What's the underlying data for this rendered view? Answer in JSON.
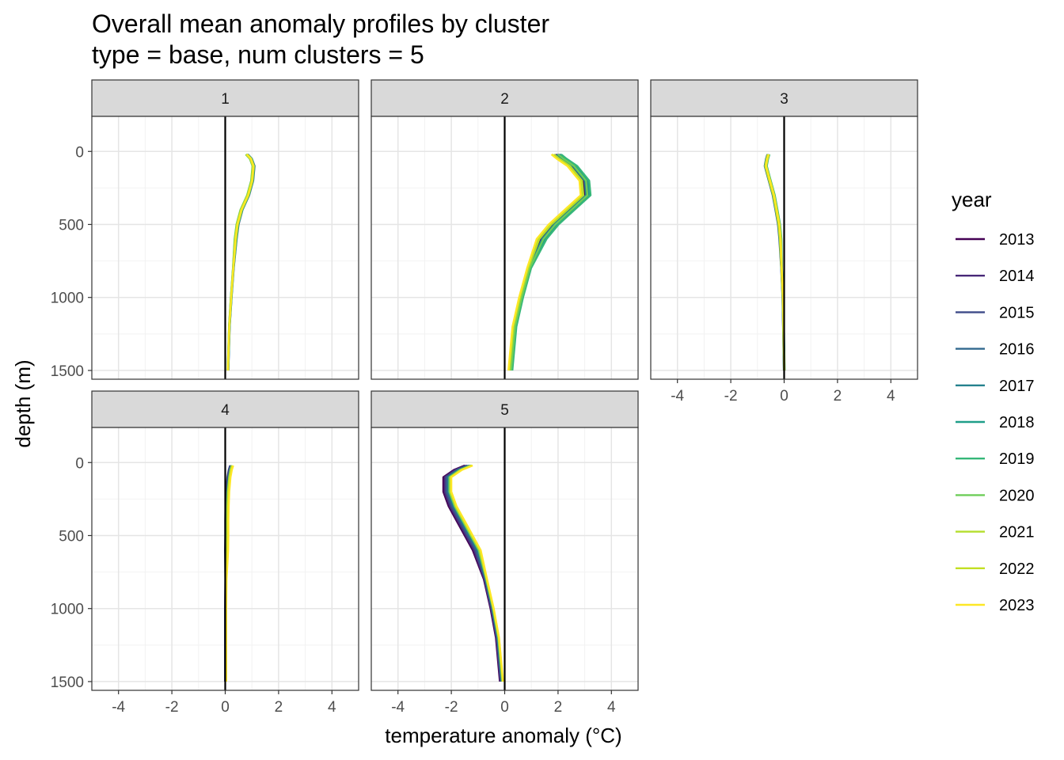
{
  "chart_data": {
    "type": "line",
    "title": "Overall mean anomaly profiles by cluster",
    "subtitle": "type = base, num clusters = 5",
    "xlabel": "temperature anomaly (°C)",
    "ylabel": "depth (m)",
    "xlim": [
      -5,
      5
    ],
    "ylim": [
      1560,
      -240
    ],
    "y_reversed": true,
    "x_ticks": [
      -4,
      -2,
      0,
      2,
      4
    ],
    "y_ticks": [
      0,
      500,
      1000,
      1500
    ],
    "grid": true,
    "reference_line_x": 0,
    "legend": {
      "title": "year",
      "position": "right",
      "entries": [
        {
          "label": "2013",
          "color": "#440154"
        },
        {
          "label": "2014",
          "color": "#482878"
        },
        {
          "label": "2015",
          "color": "#3E4A89"
        },
        {
          "label": "2016",
          "color": "#31688E"
        },
        {
          "label": "2017",
          "color": "#26828E"
        },
        {
          "label": "2018",
          "color": "#1F9E89"
        },
        {
          "label": "2019",
          "color": "#35B779"
        },
        {
          "label": "2020",
          "color": "#6DCD59"
        },
        {
          "label": "2021",
          "color": "#B4DE2C"
        },
        {
          "label": "2022",
          "color": "#C2DF23"
        },
        {
          "label": "2023",
          "color": "#FDE725"
        }
      ]
    },
    "depths": [
      20,
      50,
      100,
      200,
      300,
      400,
      500,
      600,
      800,
      1000,
      1200,
      1500
    ],
    "panels": [
      {
        "label": "1",
        "base": [
          0.8,
          0.95,
          1.05,
          1.0,
          0.85,
          0.6,
          0.45,
          0.38,
          0.3,
          0.22,
          0.15,
          0.1
        ],
        "year_offsets": [
          0.0,
          0.02,
          0.05,
          0.03,
          -0.02,
          0.0,
          0.04,
          -0.03,
          0.02,
          -0.01,
          0.01
        ]
      },
      {
        "label": "2",
        "base": [
          1.9,
          2.1,
          2.5,
          2.95,
          3.0,
          2.4,
          1.8,
          1.35,
          0.9,
          0.6,
          0.35,
          0.2
        ],
        "year_offsets": [
          0.0,
          0.08,
          0.15,
          0.12,
          0.05,
          0.18,
          0.22,
          0.1,
          -0.05,
          -0.12,
          -0.15
        ]
      },
      {
        "label": "3",
        "base": [
          -0.6,
          -0.65,
          -0.7,
          -0.55,
          -0.4,
          -0.3,
          -0.2,
          -0.15,
          -0.1,
          -0.05,
          -0.03,
          0.0
        ],
        "year_offsets": [
          0.0,
          0.02,
          -0.03,
          0.04,
          0.01,
          -0.02,
          0.05,
          0.0,
          0.03,
          -0.01,
          0.02
        ]
      },
      {
        "label": "4",
        "base": [
          0.2,
          0.15,
          0.1,
          0.05,
          0.03,
          0.02,
          0.02,
          0.01,
          0.01,
          0.0,
          0.0,
          0.0
        ],
        "year_offsets": [
          0.0,
          0.02,
          -0.02,
          0.03,
          0.05,
          0.04,
          0.06,
          0.07,
          0.05,
          0.08,
          0.1
        ]
      },
      {
        "label": "5",
        "base": [
          -1.3,
          -1.7,
          -2.1,
          -2.1,
          -1.9,
          -1.6,
          -1.3,
          -1.0,
          -0.7,
          -0.45,
          -0.25,
          -0.1
        ],
        "year_offsets": [
          -0.2,
          -0.15,
          -0.1,
          -0.05,
          0.0,
          0.02,
          0.05,
          0.03,
          0.06,
          0.08,
          0.1
        ]
      }
    ]
  }
}
